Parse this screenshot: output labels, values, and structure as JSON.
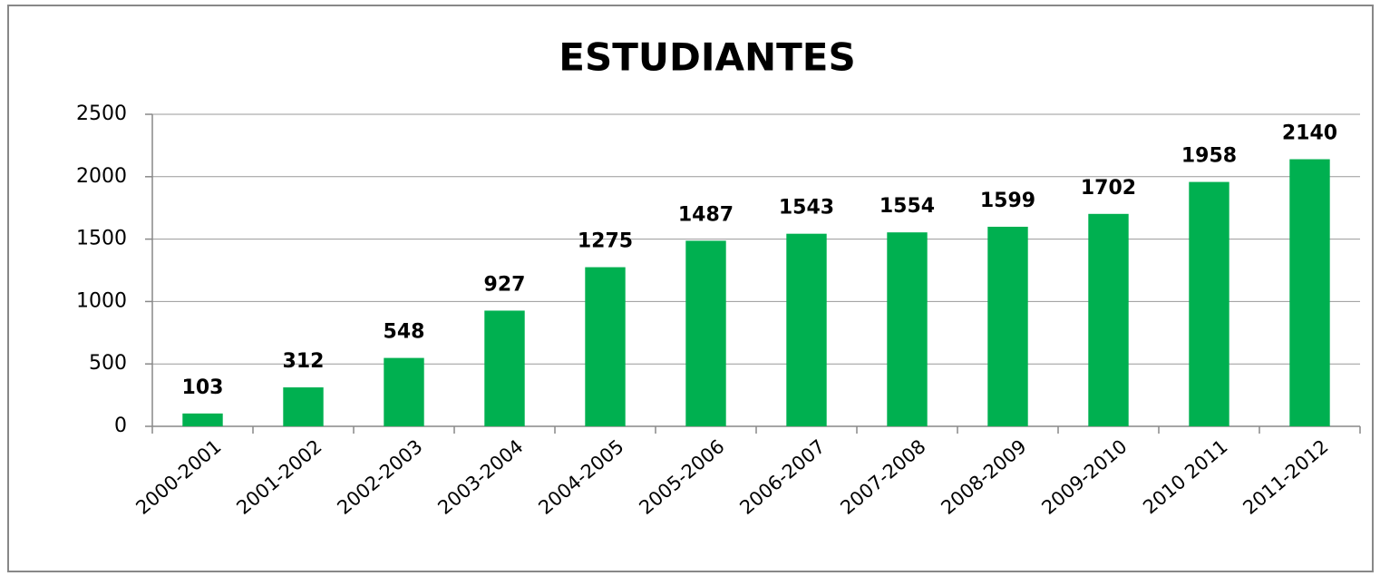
{
  "chart_data": {
    "type": "bar",
    "title": "ESTUDIANTES",
    "categories": [
      "2000-2001",
      "2001-2002",
      "2002-2003",
      "2003-2004",
      "2004-2005",
      "2005-2006",
      "2006-2007",
      "2007-2008",
      "2008-2009",
      "2009-2010",
      "2010 2011",
      "2011-2012"
    ],
    "values": [
      103,
      312,
      548,
      927,
      1275,
      1487,
      1543,
      1554,
      1599,
      1702,
      1958,
      2140
    ],
    "color": "#00b050",
    "ylim": [
      0,
      2500
    ],
    "yticks": [
      0,
      500,
      1000,
      1500,
      2000,
      2500
    ],
    "grid": true
  }
}
